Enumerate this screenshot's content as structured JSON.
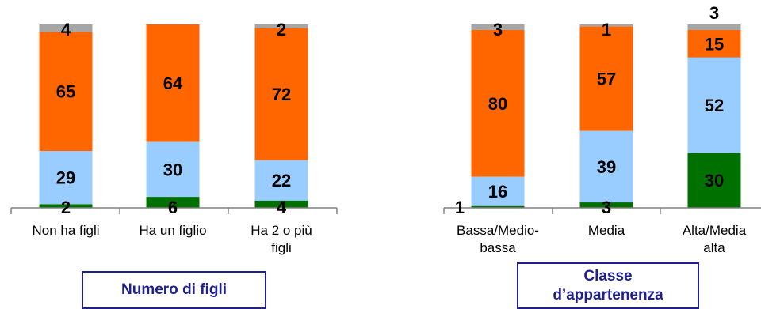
{
  "chart_data": {
    "type": "bar",
    "stacked": true,
    "categories": [
      "Non ha figli",
      "Ha un figlio",
      "Ha 2 o più figli",
      "Bassa/Medio-bassa",
      "Media",
      "Alta/Media alta"
    ],
    "category_lines": [
      [
        "Non ha figli"
      ],
      [
        "Ha un figlio"
      ],
      [
        "Ha 2 o più",
        "figli"
      ],
      [
        "Bassa/Medio-",
        "bassa"
      ],
      [
        "Media"
      ],
      [
        "Alta/Media",
        "alta"
      ]
    ],
    "series": [
      {
        "color": "#007000",
        "values": [
          2,
          6,
          4,
          1,
          3,
          30
        ]
      },
      {
        "color": "#99ccff",
        "values": [
          29,
          30,
          22,
          16,
          39,
          52
        ]
      },
      {
        "color": "#ff6600",
        "values": [
          65,
          64,
          72,
          80,
          57,
          15
        ]
      },
      {
        "color": "#a6a6a6",
        "values": [
          4,
          0,
          2,
          3,
          1,
          3
        ]
      }
    ],
    "data_labels": [
      [
        "2",
        "29",
        "65",
        "4"
      ],
      [
        "6",
        "30",
        "64",
        ""
      ],
      [
        "4",
        "22",
        "72",
        "2"
      ],
      [
        "1",
        "16",
        "80",
        "3"
      ],
      [
        "3",
        "39",
        "57",
        "1"
      ],
      [
        "30",
        "52",
        "15",
        "3"
      ]
    ],
    "ylim": [
      0,
      100
    ],
    "grid": false,
    "legend": "none"
  },
  "groups": [
    {
      "label_lines": [
        "Numero di figli"
      ]
    },
    {
      "label_lines": [
        "Classe",
        "d’appartenenza"
      ]
    }
  ]
}
